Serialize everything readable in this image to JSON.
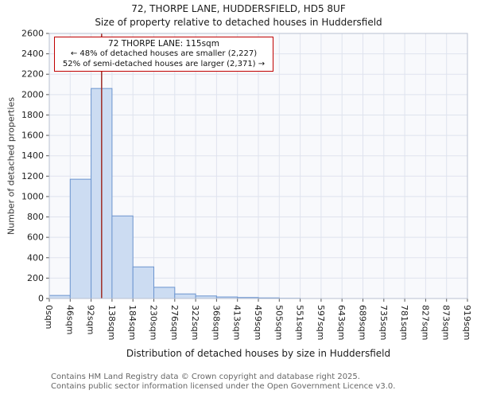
{
  "title": "72, THORPE LANE, HUDDERSFIELD, HD5 8UF",
  "subtitle": "Size of property relative to detached houses in Huddersfield",
  "annotation": {
    "line1": "72 THORPE LANE: 115sqm",
    "line2": "← 48% of detached houses are smaller (2,227)",
    "line3": "52% of semi-detached houses are larger (2,371) →"
  },
  "footer": {
    "line1": "Contains HM Land Registry data © Crown copyright and database right 2025.",
    "line2": "Contains public sector information licensed under the Open Government Licence v3.0."
  },
  "chart_data": {
    "type": "bar",
    "title": "72, THORPE LANE, HUDDERSFIELD, HD5 8UF — Size of property relative to detached houses in Huddersfield",
    "xlabel": "Distribution of detached houses by size in Huddersfield",
    "ylabel": "Number of detached properties",
    "bin_labels": [
      "0sqm",
      "46sqm",
      "92sqm",
      "138sqm",
      "184sqm",
      "230sqm",
      "276sqm",
      "322sqm",
      "368sqm",
      "413sqm",
      "459sqm",
      "505sqm",
      "551sqm",
      "597sqm",
      "643sqm",
      "689sqm",
      "735sqm",
      "781sqm",
      "827sqm",
      "873sqm",
      "919sqm"
    ],
    "values": [
      30,
      1170,
      2060,
      810,
      310,
      110,
      45,
      25,
      15,
      10,
      6,
      2,
      0,
      0,
      0,
      0,
      0,
      0,
      0,
      0
    ],
    "ylim": [
      0,
      2600
    ],
    "ytick_step": 200,
    "marker_value_sqm": 115,
    "xmax_sqm": 919,
    "legend": "none",
    "grid": "on",
    "colors": {
      "bar_fill": "#ccdcf2",
      "bar_stroke": "#6c95cf",
      "marker_line": "#9e2b25",
      "annotation_border": "#c00000",
      "grid": "#dfe3ee",
      "plot_bg": "#f8f9fc",
      "plot_border": "#b8c0d0",
      "tick": "#555555"
    }
  }
}
